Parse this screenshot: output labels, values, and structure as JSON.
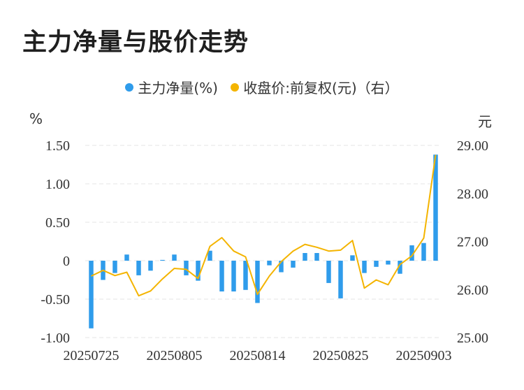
{
  "title": "主力净量与股价走势",
  "legend": {
    "left_label": "主力净量(%)",
    "right_label": "收盘价:前复权(元)（右）"
  },
  "units": {
    "left": "%",
    "right": "元"
  },
  "colors": {
    "bar": "#2f9ceb",
    "line": "#f4b400",
    "grid": "#e6e6e6",
    "axis_text": "#333333"
  },
  "chart_data": {
    "type": "bar+line",
    "title": "主力净量与股价走势",
    "x_labels_shown": [
      "20250725",
      "20250805",
      "20250814",
      "20250825",
      "20250903"
    ],
    "left_axis": {
      "label": "%",
      "ylim": [
        -1.0,
        1.5
      ],
      "ticks": [
        "1.50",
        "1.00",
        "0.50",
        "0",
        "-0.50",
        "-1.00"
      ]
    },
    "right_axis": {
      "label": "元",
      "ylim": [
        25.0,
        29.0
      ],
      "ticks": [
        "29.00",
        "28.00",
        "27.00",
        "26.00",
        "25.00"
      ]
    },
    "grid": true,
    "legend_position": "top-center",
    "series": [
      {
        "name": "主力净量(%)",
        "type": "bar",
        "axis": "left",
        "values": [
          -0.88,
          -0.25,
          -0.16,
          0.08,
          -0.19,
          -0.13,
          0.01,
          0.08,
          -0.19,
          -0.26,
          0.13,
          -0.4,
          -0.4,
          -0.38,
          -0.55,
          -0.06,
          -0.15,
          -0.09,
          0.1,
          0.1,
          -0.29,
          -0.49,
          0.07,
          -0.16,
          -0.08,
          -0.05,
          -0.17,
          0.2,
          0.23,
          1.38
        ]
      },
      {
        "name": "收盘价:前复权(元)（右）",
        "type": "line",
        "axis": "right",
        "values": [
          26.28,
          26.4,
          26.29,
          26.36,
          25.87,
          25.97,
          26.22,
          26.44,
          26.42,
          26.23,
          26.9,
          27.08,
          26.8,
          26.68,
          25.9,
          26.28,
          26.58,
          26.8,
          26.94,
          26.88,
          26.8,
          26.82,
          27.02,
          26.03,
          26.2,
          26.1,
          26.52,
          26.7,
          27.07,
          28.8
        ]
      }
    ]
  }
}
